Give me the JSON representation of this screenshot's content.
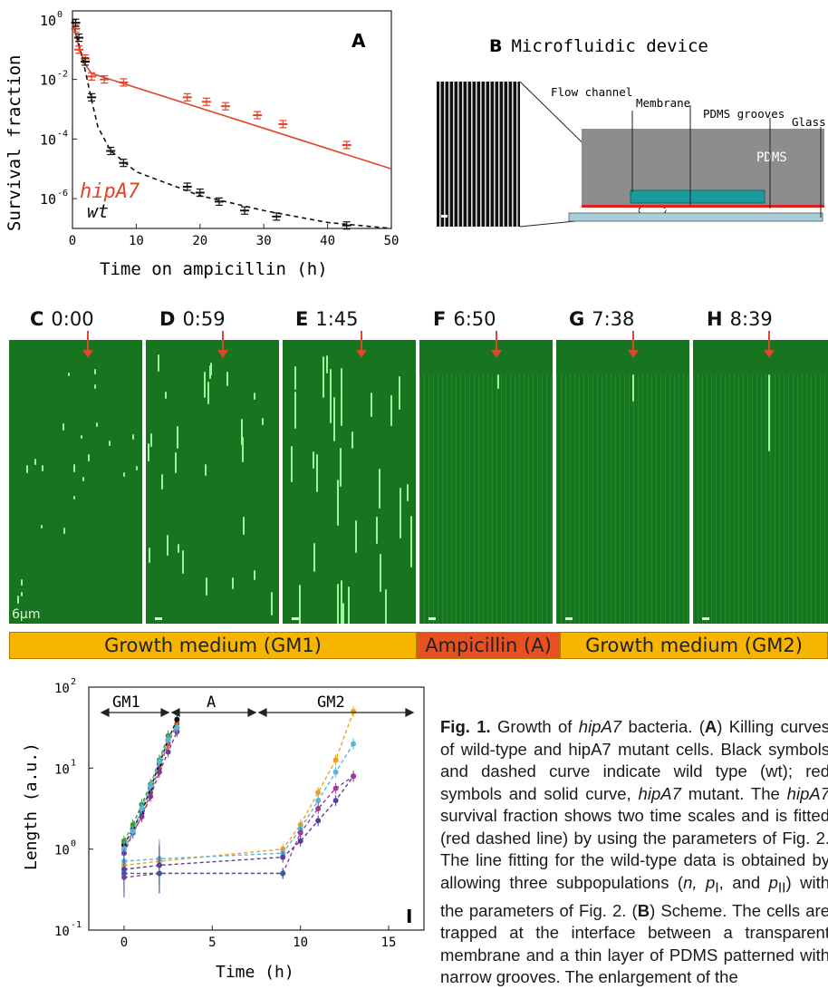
{
  "panelA": {
    "letter": "A",
    "ylabel": "Survival fraction",
    "xlabel": "Time on ampicillin (h)",
    "xticks": [
      "0",
      "10",
      "20",
      "30",
      "40",
      "50"
    ],
    "yticks": [
      "10",
      "10",
      "10",
      "10"
    ],
    "ytick_exp": [
      "0",
      "-2",
      "-4",
      "-6"
    ],
    "label_hipA7": "hipA7",
    "label_wt": "wt",
    "color_hipA7": "#e0452a",
    "color_wt": "#111111"
  },
  "chart_data": [
    {
      "type": "scatter",
      "panel": "A",
      "xlabel": "Time on ampicillin (h)",
      "ylabel": "Survival fraction",
      "xlim": [
        0,
        50
      ],
      "ylim_log10": [
        -7,
        0.3
      ],
      "yscale": "log",
      "series": [
        {
          "name": "hipA7",
          "x": [
            0.5,
            1,
            2,
            3,
            5,
            8,
            18,
            21,
            24,
            29,
            33,
            43
          ],
          "log10_y": [
            -0.3,
            -1.0,
            -1.3,
            -1.9,
            -2.0,
            -2.1,
            -2.6,
            -2.75,
            -2.9,
            -3.2,
            -3.5,
            -4.2
          ],
          "fit_x": [
            0,
            1,
            2,
            3,
            50
          ],
          "fit_log10_y": [
            -0.1,
            -0.9,
            -1.5,
            -1.8,
            -5.0
          ]
        },
        {
          "name": "wt",
          "x": [
            0.5,
            1,
            2,
            3,
            6,
            8,
            18,
            20,
            23,
            27,
            32,
            43
          ],
          "log10_y": [
            -0.1,
            -0.6,
            -1.4,
            -2.6,
            -4.4,
            -4.8,
            -5.6,
            -5.8,
            -6.1,
            -6.4,
            -6.6,
            -6.9
          ],
          "fit_x": [
            0,
            1,
            2,
            3,
            4,
            6,
            10,
            20,
            30,
            40,
            50
          ],
          "fit_log10_y": [
            0.0,
            -0.8,
            -1.7,
            -2.7,
            -3.6,
            -4.4,
            -5.1,
            -5.9,
            -6.4,
            -6.8,
            -7.0
          ]
        }
      ]
    },
    {
      "type": "line",
      "panel": "I",
      "xlabel": "Time (h)",
      "ylabel": "Length (a.u.)",
      "xlim": [
        -2,
        17
      ],
      "yscale": "log",
      "ylim_log10": [
        -1,
        2
      ],
      "series": [
        {
          "x": [
            0,
            0.5,
            1,
            1.5,
            2,
            2.5,
            3
          ],
          "log10_y": [
            0.0,
            0.2,
            0.4,
            0.7,
            1.0,
            1.3,
            1.55
          ],
          "color": "#e0452a"
        },
        {
          "x": [
            0,
            0.5,
            1,
            1.5,
            2,
            2.5,
            3
          ],
          "log10_y": [
            0.05,
            0.25,
            0.45,
            0.75,
            1.05,
            1.35,
            1.6
          ],
          "color": "#111111"
        },
        {
          "x": [
            0,
            0.5,
            1,
            1.5,
            2,
            2.5,
            3
          ],
          "log10_y": [
            0.1,
            0.3,
            0.55,
            0.8,
            1.1,
            1.4,
            1.5
          ],
          "color": "#3a9a3a"
        },
        {
          "x": [
            0,
            0.5,
            1,
            1.5,
            2,
            2.5,
            3
          ],
          "log10_y": [
            -0.05,
            0.2,
            0.4,
            0.65,
            0.95,
            1.2,
            1.45
          ],
          "color": "#7a3a9a"
        },
        {
          "x": [
            0,
            0.5,
            1,
            1.5,
            2,
            2.5,
            3
          ],
          "log10_y": [
            0.0,
            0.22,
            0.5,
            0.78,
            1.08,
            1.35,
            1.5
          ],
          "color": "#5ab4e0"
        },
        {
          "x": [
            0,
            2,
            9,
            10,
            11,
            12,
            13
          ],
          "log10_y": [
            -0.2,
            -0.15,
            0.0,
            0.3,
            0.7,
            1.1,
            1.7
          ],
          "color": "#f0a020"
        },
        {
          "x": [
            0,
            2,
            9,
            10,
            11,
            12,
            13
          ],
          "log10_y": [
            -0.15,
            -0.12,
            -0.05,
            0.25,
            0.6,
            0.95,
            1.3
          ],
          "color": "#5ab4e0"
        },
        {
          "x": [
            0,
            2,
            9,
            10,
            11,
            12,
            13
          ],
          "log10_y": [
            -0.25,
            -0.2,
            -0.1,
            0.1,
            0.35,
            0.6,
            0.9
          ],
          "color": "#5a3aa0"
        },
        {
          "x": [
            0,
            2,
            9,
            10,
            11,
            12,
            13
          ],
          "log10_y": [
            -0.35,
            -0.3,
            -0.3,
            0.2,
            0.5,
            0.75,
            0.9
          ],
          "color": "#9a3a9a"
        },
        {
          "x": [
            0,
            2,
            9
          ],
          "log10_y": [
            -0.3,
            -0.3,
            -0.3
          ],
          "color": "#3a5aa0"
        }
      ]
    }
  ],
  "panelB": {
    "letter": "B",
    "title": "Microfluidic device",
    "labels": {
      "flow": "Flow channel",
      "membrane": "Membrane",
      "grooves": "PDMS grooves",
      "glass": "Glass",
      "pdms": "PDMS"
    }
  },
  "timelapse": [
    {
      "letter": "C",
      "time": "0:00"
    },
    {
      "letter": "D",
      "time": "0:59"
    },
    {
      "letter": "E",
      "time": "1:45"
    },
    {
      "letter": "F",
      "time": "6:50"
    },
    {
      "letter": "G",
      "time": "7:38"
    },
    {
      "letter": "H",
      "time": "8:39"
    }
  ],
  "scalebar_label": "6μm",
  "media": [
    {
      "label": "Growth medium (GM1)",
      "color": "#f7b500"
    },
    {
      "label": "Ampicillin (A)",
      "color": "#e8511f"
    },
    {
      "label": "Growth medium (GM2)",
      "color": "#f7b500"
    }
  ],
  "panelI": {
    "letter": "I",
    "ylabel": "Length (a.u.)",
    "xlabel": "Time (h)",
    "xticks": [
      "0",
      "5",
      "10",
      "15"
    ],
    "yticks": [
      "10",
      "10",
      "10",
      "10"
    ],
    "ytick_exp": [
      "2",
      "1",
      "0",
      "-1"
    ],
    "phase_gm1": "GM1",
    "phase_a": "A",
    "phase_gm2": "GM2"
  },
  "caption": {
    "fig": "Fig. 1.",
    "t1": " Growth of ",
    "i1": "hipA7",
    "t2": " bacteria. (",
    "b1": "A",
    "t3": ") Killing curves of wild-type and hipA7 mutant cells. Black symbols and dashed curve indicate wild type (wt); red symbols and solid curve, ",
    "i2": "hipA7",
    "t4": " mutant. The ",
    "i3": "hipA7",
    "t5": " survival fraction shows two time scales and is fitted (red dashed line) by using the parameters of Fig. 2. The line fitting for the wild-type data is obtained by allowing three subpopulations (",
    "i4": "n, p",
    "sub1": "I",
    "t6": ", and ",
    "i5": "p",
    "sub2": "II",
    "t7": ") with the parameters of Fig. 2. (",
    "b2": "B",
    "t8": ") Scheme. The cells are trapped at the interface between a transparent membrane and a thin layer of PDMS patterned with narrow grooves. The enlargement of the"
  }
}
